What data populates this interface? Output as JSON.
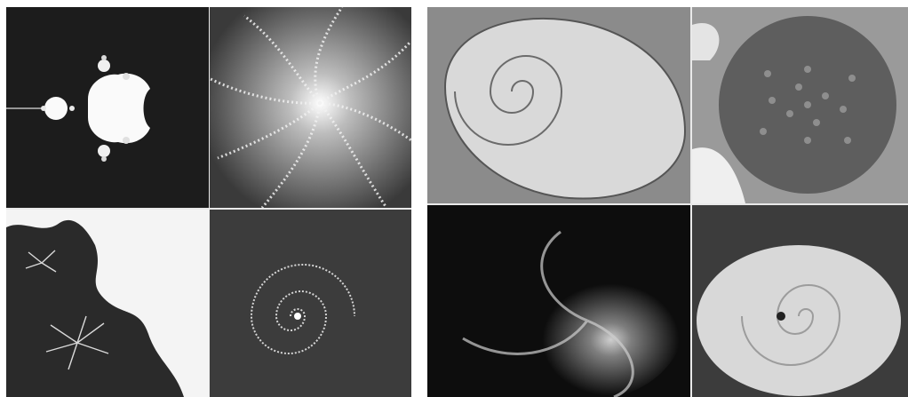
{
  "figure": {
    "left_panel": {
      "tiles": [
        {
          "name": "mandelbrot-set",
          "background": "#1c1c1c"
        },
        {
          "name": "spiral-fractal",
          "background": "#4a4a4a"
        },
        {
          "name": "fractal-boundary",
          "background": "#f4f4f4"
        },
        {
          "name": "julia-spiral",
          "background": "#3c3c3c"
        }
      ]
    },
    "right_panel": {
      "tiles": [
        {
          "name": "nautilus-shell",
          "background": "#8b8b8b"
        },
        {
          "name": "sunflower-head",
          "background": "#6e6e6e"
        },
        {
          "name": "spiral-galaxy",
          "background": "#0d0d0d"
        },
        {
          "name": "hurricane",
          "background": "#5a5a5a"
        }
      ]
    }
  }
}
